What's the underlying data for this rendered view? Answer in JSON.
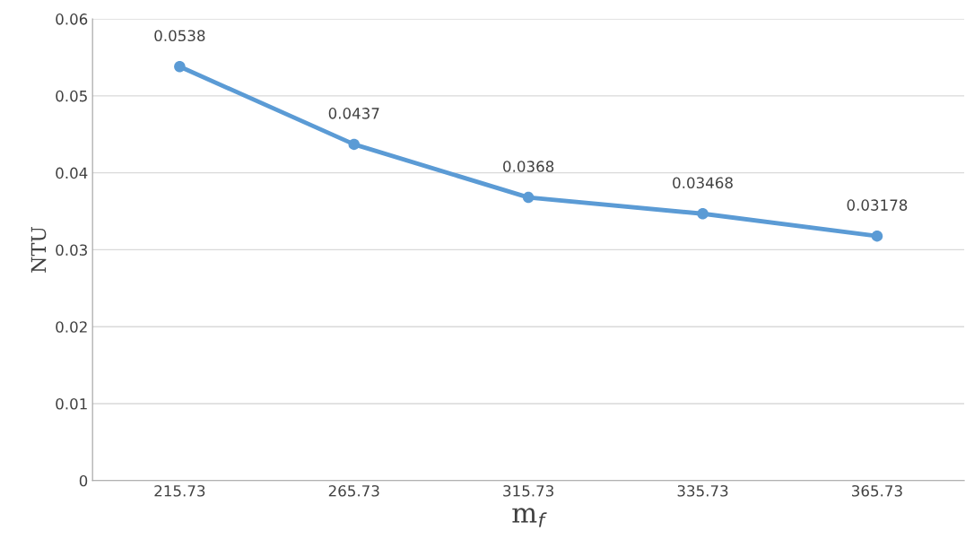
{
  "chart_data": {
    "type": "line",
    "xlabel": "m$_{f}$",
    "ylabel": "NTU",
    "categories": [
      "215.73",
      "265.73",
      "315.73",
      "335.73",
      "365.73"
    ],
    "series": [
      {
        "color": "#5b9bd5",
        "values": [
          0.0538,
          0.0437,
          0.0368,
          0.03468,
          0.03178
        ]
      }
    ],
    "ylim": [
      0,
      0.06
    ],
    "yticks": [
      0,
      0.01,
      0.02,
      0.03,
      0.04,
      0.05,
      0.06
    ],
    "grid": "y",
    "marker": "circle",
    "line_style": "solid",
    "data_labels": true
  }
}
